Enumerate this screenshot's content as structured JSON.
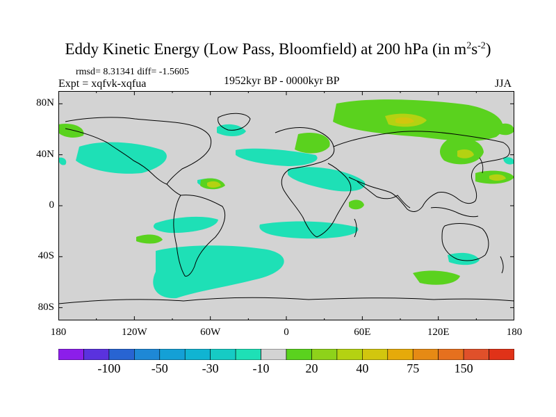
{
  "title": {
    "main": "Eddy Kinetic Energy (Low Pass, Bloomfield) at 200 hPa (in m",
    "sup1": "2",
    "mid": "s",
    "sup2": "-2",
    "end": ")"
  },
  "stats": "rmsd= 8.31341 diff= -1.5605",
  "experiment": "Expt = xqfvk-xqfua",
  "period": "1952kyr BP - 0000kyr BP",
  "season": "JJA",
  "axes": {
    "lat_labels": [
      {
        "label": "80N",
        "lat": 80
      },
      {
        "label": "40N",
        "lat": 40
      },
      {
        "label": "0",
        "lat": 0
      },
      {
        "label": "40S",
        "lat": -40
      },
      {
        "label": "80S",
        "lat": -80
      }
    ],
    "lon_labels": [
      {
        "label": "180",
        "lon": -180
      },
      {
        "label": "120W",
        "lon": -120
      },
      {
        "label": "60W",
        "lon": -60
      },
      {
        "label": "0",
        "lon": 0
      },
      {
        "label": "60E",
        "lon": 60
      },
      {
        "label": "120E",
        "lon": 120
      },
      {
        "label": "180",
        "lon": 180
      }
    ]
  },
  "colorbar": {
    "colors": [
      "#8c1eea",
      "#5a32de",
      "#2864d2",
      "#1e88d6",
      "#14a0d6",
      "#10b4d2",
      "#16cbc4",
      "#1ee0b6",
      "#d3d3d3",
      "#5ad21e",
      "#8ed21a",
      "#b4d212",
      "#d2c60e",
      "#e6aa0a",
      "#e68a14",
      "#e6701e",
      "#e0502a",
      "#e03218"
    ],
    "labels": [
      {
        "text": "-100",
        "boundary": 2
      },
      {
        "text": "-50",
        "boundary": 4
      },
      {
        "text": "-30",
        "boundary": 6
      },
      {
        "text": "-10",
        "boundary": 8
      },
      {
        "text": "20",
        "boundary": 10
      },
      {
        "text": "40",
        "boundary": 12
      },
      {
        "text": "75",
        "boundary": 14
      },
      {
        "text": "150",
        "boundary": 16
      }
    ]
  },
  "map_colors": {
    "background": "#d3d3d3",
    "negative": "#1ee0b6",
    "positive_low": "#5ad21e",
    "positive_mid": "#b4d212",
    "positive_high": "#d2c60e",
    "coast": "#000000"
  }
}
